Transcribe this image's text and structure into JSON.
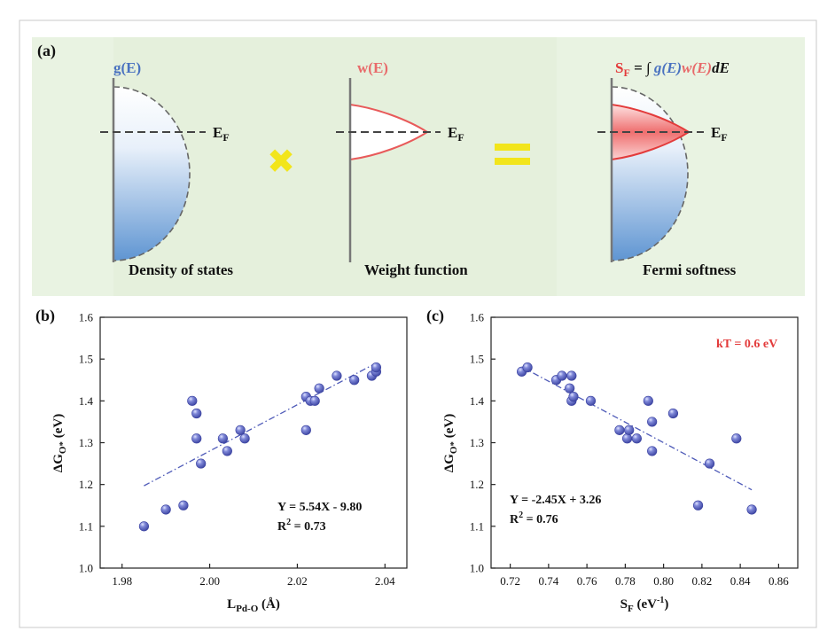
{
  "panel_a": {
    "label": "(a)",
    "dos": {
      "func_name": "g(E)",
      "fermi_label": "E",
      "fermi_sub": "F",
      "caption": "Density of states"
    },
    "weight": {
      "func_name": "w(E)",
      "fermi_label": "E",
      "fermi_sub": "F",
      "caption": "Weight function"
    },
    "softness": {
      "formula_lhs": "S",
      "formula_lhs_sub": "F",
      "formula_eq": " = ∫ ",
      "formula_g": "g(E)",
      "formula_w": "w(E)",
      "formula_de": "dE",
      "fermi_label": "E",
      "fermi_sub": "F",
      "caption": "Fermi softness"
    },
    "times_symbol": "✖",
    "equals_symbol": "="
  },
  "colors": {
    "bg_green": "#e9f3e2",
    "bg_green2": "#e2efd9",
    "point": "#5a63c2",
    "fit_line": "#4f5bb8",
    "accent_red": "#e33b3b",
    "blue_label": "#4a72c0",
    "yellow": "#f2e51b"
  },
  "chart_data": [
    {
      "type": "scatter",
      "panel_label": "(b)",
      "xlabel": "L",
      "xlabel_sub": "Pd-O",
      "xlabel_unit": " (Å)",
      "ylabel": "ΔG",
      "ylabel_sub": "O*",
      "ylabel_unit": " (eV)",
      "xlim": [
        1.975,
        2.045
      ],
      "ylim": [
        1.0,
        1.6
      ],
      "xticks": [
        1.98,
        2.0,
        2.02,
        2.04
      ],
      "xtick_labels": [
        "1.98",
        "2.00",
        "2.02",
        "2.04"
      ],
      "yticks": [
        1.0,
        1.1,
        1.2,
        1.3,
        1.4,
        1.5,
        1.6
      ],
      "ytick_labels": [
        "1.0",
        "1.1",
        "1.2",
        "1.3",
        "1.4",
        "1.5",
        "1.6"
      ],
      "x": [
        1.985,
        1.99,
        1.994,
        1.996,
        1.997,
        1.997,
        1.998,
        2.003,
        2.004,
        2.007,
        2.008,
        2.022,
        2.022,
        2.023,
        2.024,
        2.025,
        2.029,
        2.033,
        2.037,
        2.038,
        2.038
      ],
      "y": [
        1.1,
        1.14,
        1.15,
        1.4,
        1.37,
        1.31,
        1.25,
        1.31,
        1.28,
        1.33,
        1.31,
        1.33,
        1.41,
        1.4,
        1.4,
        1.43,
        1.46,
        1.45,
        1.46,
        1.47,
        1.48
      ],
      "fit": {
        "slope": 5.54,
        "intercept": -9.8,
        "x_range": [
          1.985,
          2.038
        ]
      },
      "annotation_eq": "Y = 5.54X - 9.80",
      "annotation_r2_base": "R",
      "annotation_r2_sup": "2",
      "annotation_r2_value": " = 0.73",
      "extra_label": ""
    },
    {
      "type": "scatter",
      "panel_label": "(c)",
      "xlabel": "S",
      "xlabel_sub": "F",
      "xlabel_unit": " (eV",
      "xlabel_sup": "-1",
      "xlabel_close": ")",
      "ylabel": "ΔG",
      "ylabel_sub": "O*",
      "ylabel_unit": " (eV)",
      "xlim": [
        0.71,
        0.87
      ],
      "ylim": [
        1.0,
        1.6
      ],
      "xticks": [
        0.72,
        0.74,
        0.76,
        0.78,
        0.8,
        0.82,
        0.84,
        0.86
      ],
      "xtick_labels": [
        "0.72",
        "0.74",
        "0.76",
        "0.78",
        "0.80",
        "0.82",
        "0.84",
        "0.86"
      ],
      "yticks": [
        1.0,
        1.1,
        1.2,
        1.3,
        1.4,
        1.5,
        1.6
      ],
      "ytick_labels": [
        "1.0",
        "1.1",
        "1.2",
        "1.3",
        "1.4",
        "1.5",
        "1.6"
      ],
      "x": [
        0.726,
        0.729,
        0.744,
        0.747,
        0.751,
        0.752,
        0.752,
        0.753,
        0.762,
        0.777,
        0.781,
        0.782,
        0.786,
        0.792,
        0.794,
        0.794,
        0.805,
        0.818,
        0.824,
        0.838,
        0.846
      ],
      "y": [
        1.47,
        1.48,
        1.45,
        1.46,
        1.43,
        1.46,
        1.4,
        1.41,
        1.4,
        1.33,
        1.31,
        1.33,
        1.31,
        1.4,
        1.35,
        1.28,
        1.37,
        1.15,
        1.25,
        1.31,
        1.14
      ],
      "fit": {
        "slope": -2.45,
        "intercept": 3.26,
        "x_range": [
          0.726,
          0.846
        ]
      },
      "annotation_eq": "Y = -2.45X + 3.26",
      "annotation_r2_base": "R",
      "annotation_r2_sup": "2",
      "annotation_r2_value": " = 0.76",
      "extra_label": "kT = 0.6 eV"
    }
  ]
}
